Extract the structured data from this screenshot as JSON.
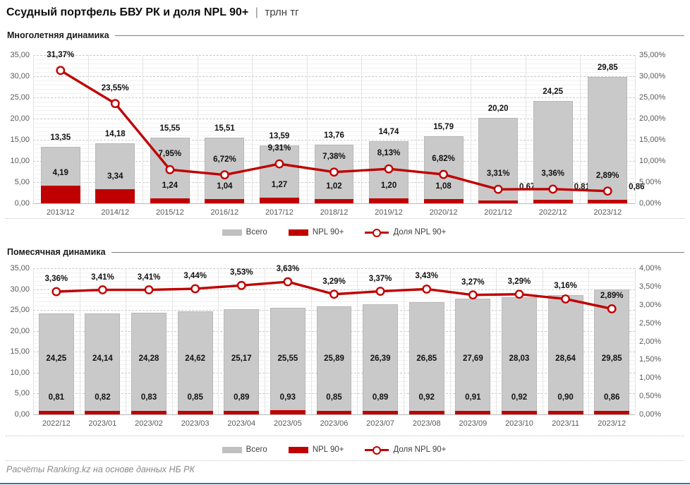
{
  "page": {
    "title_main": "Ссудный портфель БВУ РК и доля NPL 90+",
    "title_sep": "|",
    "title_unit": "трлн тг",
    "footer": "Расчёты Ranking.kz на основе данных НБ РК"
  },
  "legend": {
    "total": "Всего",
    "npl": "NPL 90+",
    "share": "Доля NPL 90+"
  },
  "colors": {
    "bar_total": "#c9c9c9",
    "bar_npl": "#c00000",
    "line": "#c00000",
    "marker_fill": "#ffffff",
    "axis_text": "#595959",
    "bottom_rule": "#2e74b5"
  },
  "chart_data": [
    {
      "type": "bar+line",
      "section_title": "Многолетняя динамика",
      "categories": [
        "2013/12",
        "2014/12",
        "2015/12",
        "2016/12",
        "2017/12",
        "2018/12",
        "2019/12",
        "2020/12",
        "2021/12",
        "2022/12",
        "2023/12"
      ],
      "series": [
        {
          "name": "Всего",
          "role": "bar_total",
          "values": [
            13.35,
            14.18,
            15.55,
            15.51,
            13.59,
            13.76,
            14.74,
            15.79,
            20.2,
            24.25,
            29.85
          ],
          "labels": [
            "13,35",
            "14,18",
            "15,55",
            "15,51",
            "13,59",
            "13,76",
            "14,74",
            "15,79",
            "20,20",
            "24,25",
            "29,85"
          ]
        },
        {
          "name": "NPL 90+",
          "role": "bar_npl",
          "values": [
            4.19,
            3.34,
            1.24,
            1.04,
            1.27,
            1.02,
            1.2,
            1.08,
            0.67,
            0.81,
            0.86
          ],
          "labels": [
            "4,19",
            "3,34",
            "1,24",
            "1,04",
            "1,27",
            "1,02",
            "1,20",
            "1,08",
            "0,67",
            "0,81",
            "0,86"
          ],
          "label_placement": [
            "inside",
            "inside",
            "inside",
            "inside",
            "inside",
            "inside",
            "inside",
            "inside",
            "right",
            "right",
            "right"
          ]
        },
        {
          "name": "Доля NPL 90+",
          "role": "line_share",
          "axis": "right",
          "values": [
            31.37,
            23.55,
            7.95,
            6.72,
            9.31,
            7.38,
            8.13,
            6.82,
            3.31,
            3.36,
            2.89
          ],
          "labels": [
            "31,37%",
            "23,55%",
            "7,95%",
            "6,72%",
            "9,31%",
            "7,38%",
            "8,13%",
            "6,82%",
            "3,31%",
            "3,36%",
            "2,89%"
          ]
        }
      ],
      "left_axis": {
        "min": 0,
        "max": 35,
        "tick_labels": [
          "35,00",
          "30,00",
          "25,00",
          "20,00",
          "15,00",
          "10,00",
          "5,00",
          "0,00"
        ]
      },
      "right_axis": {
        "min": 0,
        "max": 35,
        "tick_labels": [
          "35,00%",
          "30,00%",
          "25,00%",
          "20,00%",
          "15,00%",
          "10,00%",
          "5,00%",
          "0,00%"
        ]
      },
      "grid": "on",
      "legend_position": "bottom"
    },
    {
      "type": "bar+line",
      "section_title": "Помесячная динамика",
      "categories": [
        "2022/12",
        "2023/01",
        "2023/02",
        "2023/03",
        "2023/04",
        "2023/05",
        "2023/06",
        "2023/07",
        "2023/08",
        "2023/09",
        "2023/10",
        "2023/11",
        "2023/12"
      ],
      "series": [
        {
          "name": "Всего",
          "role": "bar_total",
          "values": [
            24.25,
            24.14,
            24.28,
            24.62,
            25.17,
            25.55,
            25.89,
            26.39,
            26.85,
            27.69,
            28.03,
            28.64,
            29.85
          ],
          "labels": [
            "24,25",
            "24,14",
            "24,28",
            "24,62",
            "25,17",
            "25,55",
            "25,89",
            "26,39",
            "26,85",
            "27,69",
            "28,03",
            "28,64",
            "29,85"
          ]
        },
        {
          "name": "NPL 90+",
          "role": "bar_npl",
          "values": [
            0.81,
            0.82,
            0.83,
            0.85,
            0.89,
            0.93,
            0.85,
            0.89,
            0.92,
            0.91,
            0.92,
            0.9,
            0.86
          ],
          "labels": [
            "0,81",
            "0,82",
            "0,83",
            "0,85",
            "0,89",
            "0,93",
            "0,85",
            "0,89",
            "0,92",
            "0,91",
            "0,92",
            "0,90",
            "0,86"
          ],
          "label_placement": [
            "inside",
            "inside",
            "inside",
            "inside",
            "inside",
            "inside",
            "inside",
            "inside",
            "inside",
            "inside",
            "inside",
            "inside",
            "inside"
          ]
        },
        {
          "name": "Доля NPL 90+",
          "role": "line_share",
          "axis": "right",
          "values": [
            3.36,
            3.41,
            3.41,
            3.44,
            3.53,
            3.63,
            3.29,
            3.37,
            3.43,
            3.27,
            3.29,
            3.16,
            2.89
          ],
          "labels": [
            "3,36%",
            "3,41%",
            "3,41%",
            "3,44%",
            "3,53%",
            "3,63%",
            "3,29%",
            "3,37%",
            "3,43%",
            "3,27%",
            "3,29%",
            "3,16%",
            "2,89%"
          ]
        }
      ],
      "left_axis": {
        "min": 0,
        "max": 35,
        "tick_labels": [
          "35,00",
          "30,00",
          "25,00",
          "20,00",
          "15,00",
          "10,00",
          "5,00",
          "0,00"
        ]
      },
      "right_axis": {
        "min": 0,
        "max": 4,
        "tick_labels": [
          "4,00%",
          "3,50%",
          "3,00%",
          "2,50%",
          "2,00%",
          "1,50%",
          "1,00%",
          "0,50%",
          "0,00%"
        ]
      },
      "grid": "on",
      "legend_position": "bottom"
    }
  ]
}
